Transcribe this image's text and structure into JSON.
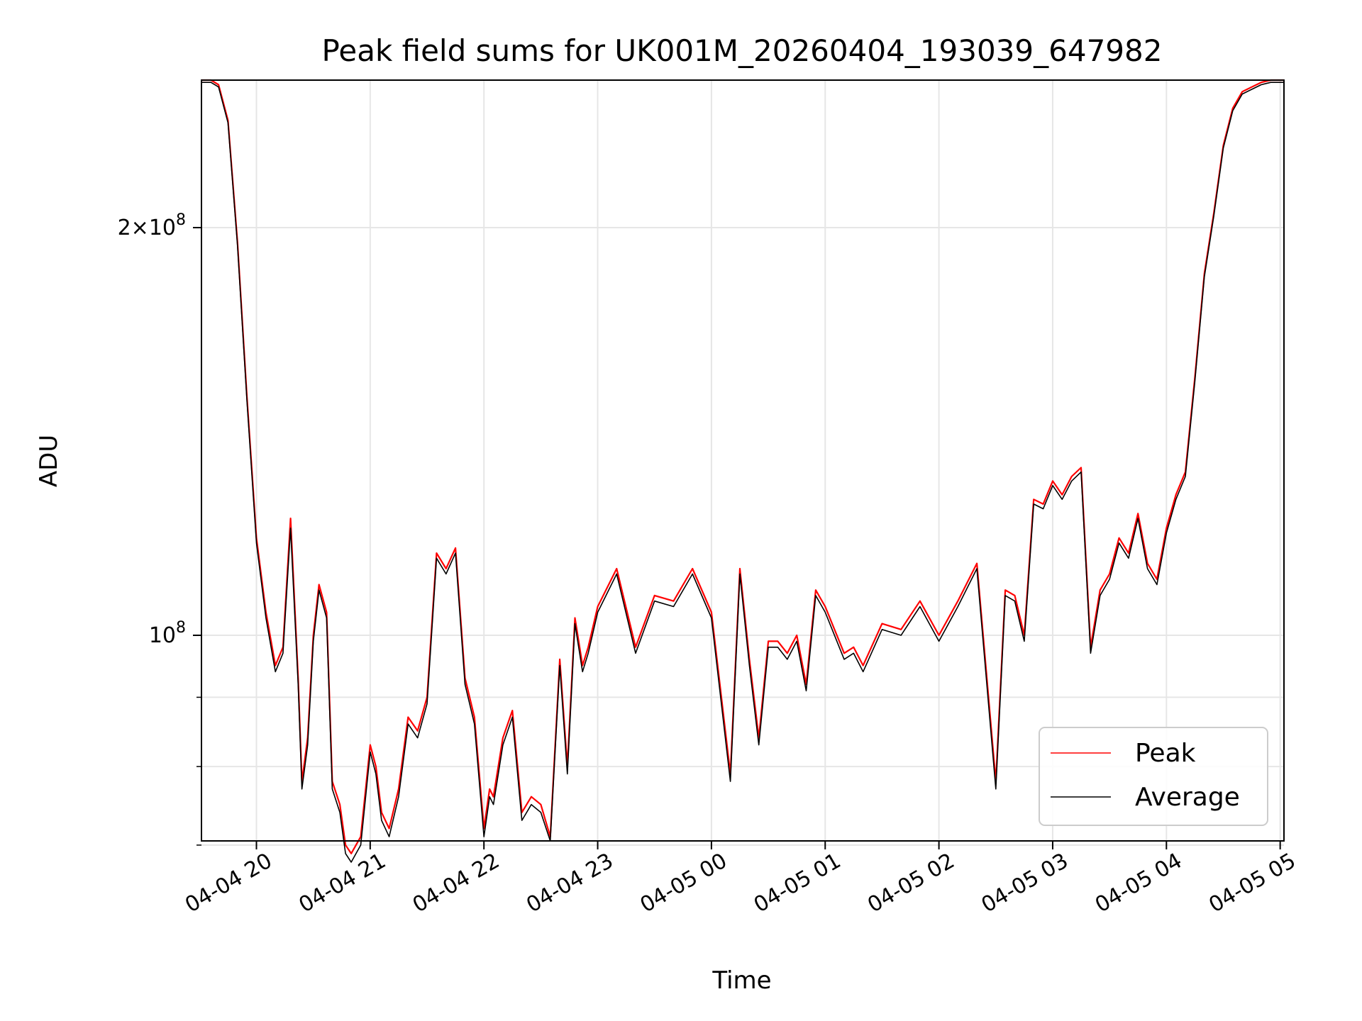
{
  "chart_data": {
    "type": "line",
    "title": "Peak field sums for UK001M_20260404_193039_647982",
    "xlabel": "Time",
    "ylabel": "ADU",
    "yscale": "log",
    "grid": true,
    "legend_placement": "lower-right",
    "xlim": [
      "2026-04-04 19:31",
      "2026-04-05 05:02"
    ],
    "ylim": [
      70500000,
      257000000
    ],
    "x_ticks": [
      "04-04 20",
      "04-04 21",
      "04-04 22",
      "04-04 23",
      "04-05 00",
      "04-05 01",
      "04-05 02",
      "04-05 03",
      "04-05 04",
      "04-05 05"
    ],
    "y_major_ticks": [
      {
        "value": 200000000,
        "label_mantissa": "2",
        "label_base": "10",
        "label_exp": "8"
      },
      {
        "value": 100000000,
        "label_base": "10",
        "label_exp": "8"
      }
    ],
    "y_minor_ticks": [
      70000000,
      80000000,
      90000000
    ],
    "x": [
      "19:31",
      "19:36",
      "19:40",
      "19:45",
      "19:50",
      "19:55",
      "20:00",
      "20:05",
      "20:10",
      "20:14",
      "20:18",
      "20:22",
      "20:24",
      "20:27",
      "20:30",
      "20:33",
      "20:37",
      "20:40",
      "20:44",
      "20:47",
      "20:50",
      "20:55",
      "21:00",
      "21:03",
      "21:06",
      "21:10",
      "21:15",
      "21:20",
      "21:25",
      "21:30",
      "21:35",
      "21:40",
      "21:45",
      "21:50",
      "21:55",
      "22:00",
      "22:03",
      "22:05",
      "22:10",
      "22:15",
      "22:20",
      "22:25",
      "22:30",
      "22:35",
      "22:40",
      "22:44",
      "22:48",
      "22:52",
      "22:55",
      "23:00",
      "23:10",
      "23:20",
      "23:30",
      "23:40",
      "23:50",
      "00:00",
      "00:10",
      "00:15",
      "00:20",
      "00:25",
      "00:30",
      "00:35",
      "00:40",
      "00:45",
      "00:50",
      "00:55",
      "01:00",
      "01:10",
      "01:15",
      "01:20",
      "01:30",
      "01:40",
      "01:50",
      "02:00",
      "02:10",
      "02:20",
      "02:30",
      "02:35",
      "02:40",
      "02:45",
      "02:50",
      "02:55",
      "03:00",
      "03:05",
      "03:10",
      "03:15",
      "03:20",
      "03:25",
      "03:30",
      "03:35",
      "03:40",
      "03:45",
      "03:50",
      "03:55",
      "04:00",
      "04:05",
      "04:10",
      "04:15",
      "04:20",
      "04:25",
      "04:30",
      "04:35",
      "04:40",
      "04:45",
      "04:50",
      "04:55",
      "05:00",
      "05:02"
    ],
    "series": [
      {
        "name": "Peak",
        "color": "#ff0000",
        "values": [
          257,
          257,
          255,
          240,
          195,
          150,
          118,
          104,
          95,
          98,
          122,
          93,
          78,
          84,
          100,
          109,
          104,
          78,
          75,
          70,
          69,
          71,
          83,
          80,
          74,
          72,
          77,
          87,
          85,
          90,
          115,
          112,
          116,
          93,
          87,
          72,
          77,
          76,
          84,
          88,
          74,
          76,
          75,
          71,
          96,
          80,
          103,
          95,
          98,
          105,
          112,
          98,
          107,
          106,
          112,
          104,
          79,
          112,
          96,
          84,
          99,
          99,
          97,
          100,
          92,
          108,
          105,
          97,
          98,
          95,
          102,
          101,
          106,
          100,
          106,
          113,
          78,
          108,
          107,
          100,
          126,
          125,
          130,
          127,
          131,
          133,
          98,
          108,
          111,
          118,
          115,
          123,
          113,
          110,
          120,
          127,
          132,
          155,
          185,
          205,
          230,
          245,
          252,
          254,
          256,
          257,
          257,
          257
        ]
      },
      {
        "name": "Average",
        "color": "#000000",
        "values": [
          256,
          256,
          254,
          239,
          194,
          149,
          117,
          103,
          94,
          97,
          120,
          92,
          77,
          83,
          99,
          108,
          103,
          77,
          74,
          69,
          68,
          70,
          82,
          79,
          73,
          71,
          76,
          86,
          84,
          89,
          114,
          111,
          115,
          92,
          86,
          71,
          76,
          75,
          83,
          87,
          73,
          75,
          74,
          70.5,
          95,
          79,
          102,
          94,
          97,
          104,
          111,
          97,
          106,
          105,
          111,
          103,
          78,
          111,
          95,
          83,
          98,
          98,
          96,
          99,
          91,
          107,
          104,
          96,
          97,
          94,
          101,
          100,
          105,
          99,
          105,
          112,
          77,
          107,
          106,
          99,
          125,
          124,
          129,
          126,
          130,
          132,
          97,
          107,
          110,
          117,
          114,
          122,
          112,
          109,
          119,
          126,
          131,
          154,
          184,
          204,
          229,
          244,
          251,
          253,
          255,
          256,
          256,
          256
        ]
      }
    ],
    "value_unit_multiplier": 1000000
  }
}
